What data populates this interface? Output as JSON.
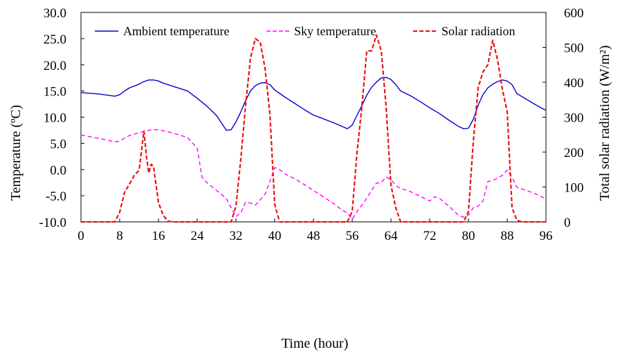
{
  "chart_data": {
    "type": "line",
    "xlabel": "Time (hour)",
    "ylabel_left": "Temperature (ºC)",
    "ylabel_right": "Total solar radiation (W/m²)",
    "xlim": [
      0,
      96
    ],
    "ylim_left": [
      -10,
      30
    ],
    "ylim_right": [
      0,
      600
    ],
    "x_ticks": [
      "0",
      "8",
      "16",
      "24",
      "32",
      "40",
      "48",
      "56",
      "64",
      "72",
      "80",
      "88",
      "96"
    ],
    "y_left_ticks": [
      "30.0",
      "25.0",
      "20.0",
      "15.0",
      "10.0",
      "5.0",
      "0.0",
      "-5.0",
      "-10.0"
    ],
    "y_right_ticks": [
      "600",
      "500",
      "400",
      "300",
      "200",
      "100",
      "0"
    ],
    "legend_position": "top",
    "grid": false,
    "series": [
      {
        "name": "Ambient temperature",
        "axis": "left",
        "color": "#0000cc",
        "style": "solid",
        "x": [
          0,
          4,
          7,
          8,
          9,
          10,
          12,
          13,
          14,
          15,
          16,
          17,
          20,
          22,
          24,
          26,
          28,
          30,
          31,
          32,
          33,
          34,
          35,
          36,
          37,
          38,
          39,
          40,
          42,
          44,
          46,
          48,
          50,
          52,
          54,
          55,
          56,
          57,
          58,
          59,
          60,
          61,
          62,
          63,
          64,
          65,
          66,
          68,
          70,
          72,
          74,
          76,
          78,
          79,
          80,
          81,
          82,
          83,
          84,
          85,
          86,
          87,
          88,
          89,
          90,
          92,
          94,
          96
        ],
        "y": [
          14.7,
          14.4,
          14.0,
          14.3,
          15.0,
          15.6,
          16.3,
          16.8,
          17.1,
          17.1,
          16.9,
          16.5,
          15.6,
          15.0,
          13.6,
          12.1,
          10.3,
          7.5,
          7.6,
          9.1,
          11.0,
          13.2,
          15.0,
          16.0,
          16.5,
          16.6,
          16.2,
          15.2,
          13.9,
          12.7,
          11.5,
          10.4,
          9.7,
          9.0,
          8.2,
          7.8,
          8.5,
          10.4,
          12.2,
          14.2,
          15.7,
          16.7,
          17.5,
          17.6,
          17.2,
          16.2,
          15.0,
          14.1,
          13.0,
          11.8,
          10.7,
          9.4,
          8.2,
          7.8,
          7.9,
          9.6,
          12.3,
          14.3,
          15.6,
          16.3,
          16.8,
          17.1,
          16.9,
          16.2,
          14.5,
          13.4,
          12.3,
          11.3
        ]
      },
      {
        "name": "Sky temperature",
        "axis": "left",
        "color": "#ff00ff",
        "style": "dashed",
        "x": [
          0,
          4,
          7,
          8,
          9,
          10,
          12,
          14,
          15,
          16,
          18,
          20,
          22,
          24,
          25,
          26,
          28,
          30,
          31,
          32,
          33,
          34,
          35,
          36,
          37,
          38,
          39,
          40,
          41,
          42,
          44,
          46,
          48,
          50,
          52,
          54,
          55,
          56,
          57,
          58,
          59,
          60,
          61,
          62,
          63,
          64,
          65,
          66,
          68,
          70,
          72,
          73,
          74,
          76,
          78,
          79,
          80,
          81,
          82,
          83,
          84,
          85,
          86,
          87,
          88,
          89,
          90,
          92,
          94,
          96
        ],
        "y": [
          6.6,
          5.9,
          5.3,
          5.4,
          6.0,
          6.5,
          7.0,
          7.5,
          7.6,
          7.6,
          7.2,
          6.7,
          6.1,
          4.1,
          -1.5,
          -2.5,
          -4.0,
          -5.5,
          -7.3,
          -9.0,
          -8.3,
          -6.2,
          -6.4,
          -6.8,
          -5.8,
          -4.7,
          -2.3,
          0.4,
          0.0,
          -0.8,
          -1.7,
          -2.8,
          -4.0,
          -5.2,
          -6.4,
          -7.8,
          -8.3,
          -9.5,
          -8.0,
          -6.8,
          -5.5,
          -4.0,
          -2.6,
          -2.5,
          -1.4,
          -1.9,
          -3.1,
          -3.6,
          -4.2,
          -5.1,
          -6.0,
          -5.2,
          -5.5,
          -7.0,
          -8.8,
          -9.1,
          -8.7,
          -7.3,
          -7.0,
          -6.0,
          -2.3,
          -2.1,
          -1.6,
          -1.1,
          -0.1,
          -1.5,
          -3.4,
          -4.0,
          -4.7,
          -5.6
        ]
      },
      {
        "name": "Solar radiation",
        "axis": "right",
        "color": "#ee1111",
        "style": "dashed",
        "x": [
          0,
          6,
          7,
          8,
          9,
          10,
          11,
          12,
          13,
          13.5,
          14,
          14.5,
          15,
          16,
          17,
          18,
          19,
          20,
          24,
          30,
          31,
          32,
          33,
          34,
          35,
          36,
          37,
          38,
          39,
          40,
          41,
          42,
          48,
          55,
          56,
          57,
          58,
          59,
          60,
          61,
          62,
          63,
          64,
          65,
          66,
          72,
          79,
          80,
          81,
          82,
          83,
          84,
          85,
          86,
          87,
          88,
          89,
          90,
          91,
          96
        ],
        "y": [
          0,
          0,
          0,
          28,
          85,
          108,
          133,
          148,
          260,
          190,
          140,
          165,
          158,
          55,
          18,
          2,
          0,
          0,
          0,
          0,
          0,
          45,
          180,
          335,
          470,
          525,
          515,
          440,
          310,
          50,
          0,
          0,
          0,
          0,
          30,
          200,
          330,
          490,
          490,
          535,
          490,
          330,
          105,
          40,
          0,
          0,
          0,
          30,
          230,
          385,
          430,
          450,
          520,
          465,
          380,
          315,
          40,
          5,
          0,
          0
        ]
      }
    ]
  }
}
